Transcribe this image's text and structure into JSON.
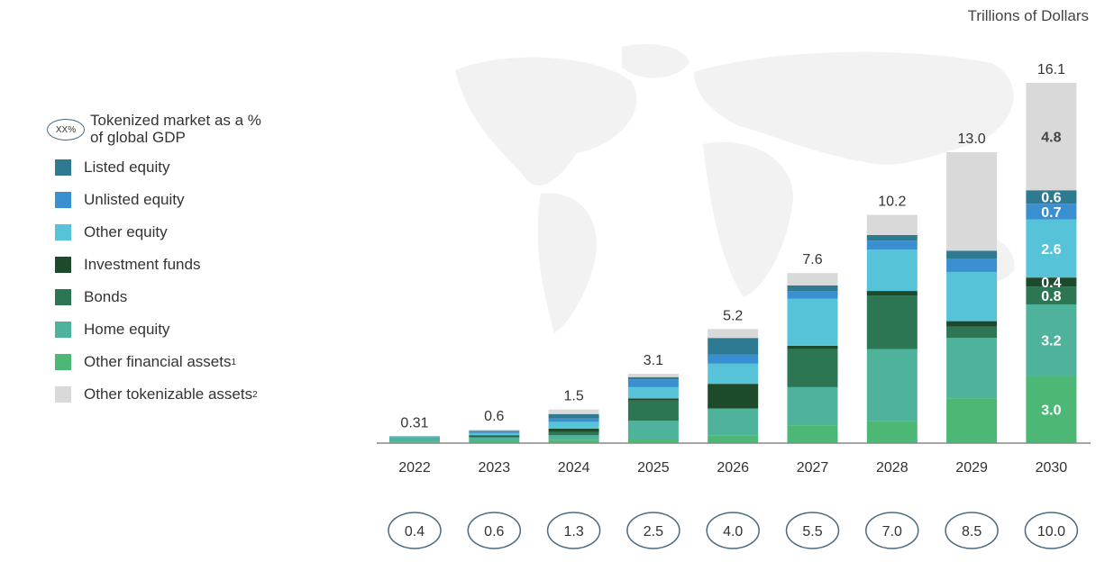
{
  "unit_label": "Trillions of Dollars",
  "legend": {
    "gdp_marker": "XX%",
    "gdp_label_1": "Tokenized market as a %",
    "gdp_label_2": "of global GDP"
  },
  "colors": {
    "listed_equity": "#2e7a90",
    "unlisted_equity": "#3a8fd0",
    "other_equity": "#56c3d8",
    "investment_funds": "#1e4a2c",
    "bonds": "#2c7654",
    "home_equity": "#4fb29a",
    "other_financial": "#4db876",
    "other_tokenizable": "#d9d9d9",
    "oval_stroke": "#4a6a80",
    "axis": "#888888"
  },
  "chart_data": {
    "type": "bar",
    "stacked": true,
    "categories": [
      "2022",
      "2023",
      "2024",
      "2025",
      "2026",
      "2027",
      "2028",
      "2029",
      "2030"
    ],
    "series": [
      {
        "key": "other_financial",
        "name": "Other financial assets",
        "footnote": "1",
        "values": [
          0.05,
          0.1,
          0.15,
          0.2,
          0.35,
          0.8,
          1.0,
          2.0,
          3.0
        ]
      },
      {
        "key": "home_equity",
        "name": "Home equity",
        "values": [
          0.2,
          0.15,
          0.2,
          0.8,
          1.2,
          1.7,
          3.2,
          2.7,
          3.2
        ]
      },
      {
        "key": "bonds",
        "name": "Bonds",
        "values": [
          0.01,
          0.05,
          0.15,
          0.9,
          0.0,
          1.7,
          2.4,
          0.5,
          0.8
        ]
      },
      {
        "key": "investment_funds",
        "name": "Investment funds",
        "values": [
          0.01,
          0.05,
          0.15,
          0.1,
          1.1,
          0.15,
          0.2,
          0.25,
          0.4
        ]
      },
      {
        "key": "other_equity",
        "name": "Other equity",
        "values": [
          0.02,
          0.1,
          0.3,
          0.5,
          0.9,
          2.1,
          1.85,
          2.2,
          2.6
        ]
      },
      {
        "key": "unlisted_equity",
        "name": "Unlisted equity",
        "values": [
          0.01,
          0.05,
          0.15,
          0.35,
          0.4,
          0.35,
          0.4,
          0.6,
          0.7
        ]
      },
      {
        "key": "listed_equity",
        "name": "Listed equity",
        "values": [
          0.01,
          0.05,
          0.2,
          0.1,
          0.75,
          0.25,
          0.25,
          0.35,
          0.6
        ]
      },
      {
        "key": "other_tokenizable",
        "name": "Other tokenizable assets",
        "footnote": "2",
        "values": [
          0.0,
          0.05,
          0.2,
          0.15,
          0.4,
          0.55,
          0.9,
          4.4,
          4.8
        ]
      }
    ],
    "totals": [
      "0.31",
      "0.6",
      "1.5",
      "3.1",
      "5.2",
      "7.6",
      "10.2",
      "13.0",
      "16.1"
    ],
    "gdp_percent": [
      "0.4",
      "0.6",
      "1.3",
      "2.5",
      "4.0",
      "5.5",
      "7.0",
      "8.5",
      "10.0"
    ],
    "segment_labels_2030": [
      {
        "key": "other_financial",
        "label": "3.0"
      },
      {
        "key": "home_equity",
        "label": "3.2"
      },
      {
        "key": "bonds",
        "label": "0.8"
      },
      {
        "key": "investment_funds",
        "label": "0.4"
      },
      {
        "key": "other_equity",
        "label": "2.6"
      },
      {
        "key": "unlisted_equity",
        "label": "0.7"
      },
      {
        "key": "listed_equity",
        "label": "0.6"
      },
      {
        "key": "other_tokenizable",
        "label": "4.8"
      }
    ],
    "ylim": [
      0,
      16.1
    ]
  }
}
